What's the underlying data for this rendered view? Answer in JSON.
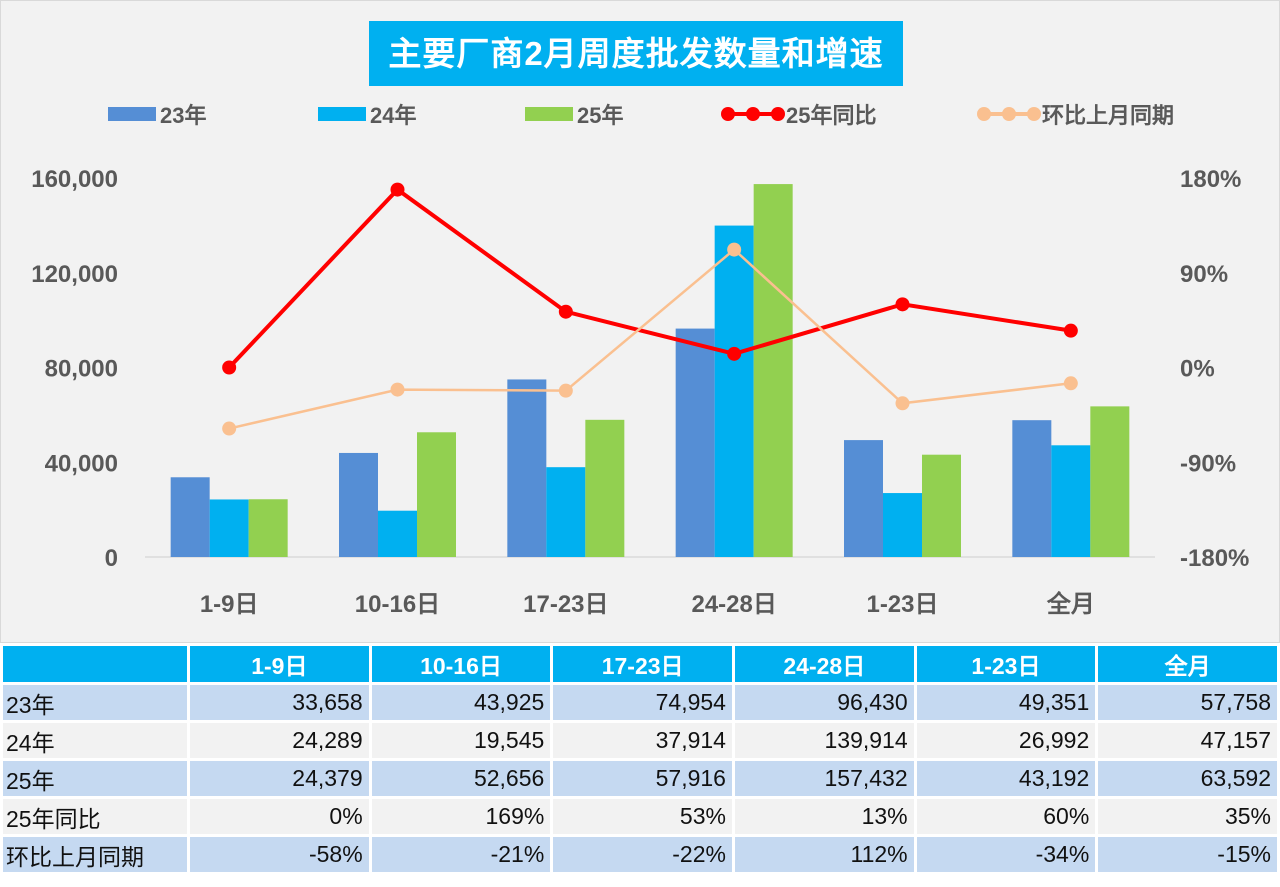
{
  "chart_data": {
    "type": "bar+line",
    "title": "主要厂商2月周度批发数量和增速",
    "categories": [
      "1-9日",
      "10-16日",
      "17-23日",
      "24-28日",
      "1-23日",
      "全月"
    ],
    "series": [
      {
        "name": "23年",
        "type": "bar",
        "axis": "left",
        "color": "#558ed5",
        "values": [
          33658,
          43925,
          74954,
          96430,
          49351,
          57758
        ]
      },
      {
        "name": "24年",
        "type": "bar",
        "axis": "left",
        "color": "#00b0f0",
        "values": [
          24289,
          19545,
          37914,
          139914,
          26992,
          47157
        ]
      },
      {
        "name": "25年",
        "type": "bar",
        "axis": "left",
        "color": "#92d050",
        "values": [
          24379,
          52656,
          57916,
          157432,
          43192,
          63592
        ]
      },
      {
        "name": "25年同比",
        "type": "line",
        "axis": "right",
        "color": "#ff0000",
        "values": [
          0,
          169,
          53,
          13,
          60,
          35
        ]
      },
      {
        "name": "环比上月同期",
        "type": "line",
        "axis": "right",
        "color": "#fac090",
        "values": [
          -58,
          -21,
          -22,
          112,
          -34,
          -15
        ]
      }
    ],
    "left_axis": {
      "ylim": [
        0,
        160000
      ],
      "ticks": [
        "0",
        "40,000",
        "80,000",
        "120,000",
        "160,000"
      ]
    },
    "right_axis": {
      "ylim": [
        -180,
        180
      ],
      "ticks": [
        "-180%",
        "-90%",
        "0%",
        "90%",
        "180%"
      ]
    },
    "legend": "top",
    "grid": false
  },
  "table": {
    "header": [
      "",
      "1-9日",
      "10-16日",
      "17-23日",
      "24-28日",
      "1-23日",
      "全月"
    ],
    "rows": [
      [
        "23年",
        "33,658",
        "43,925",
        "74,954",
        "96,430",
        "49,351",
        "57,758"
      ],
      [
        "24年",
        "24,289",
        "19,545",
        "37,914",
        "139,914",
        "26,992",
        "47,157"
      ],
      [
        "25年",
        "24,379",
        "52,656",
        "57,916",
        "157,432",
        "43,192",
        "63,592"
      ],
      [
        "25年同比",
        "0%",
        "169%",
        "53%",
        "13%",
        "60%",
        "35%"
      ],
      [
        "环比上月同期",
        "-58%",
        "-21%",
        "-22%",
        "112%",
        "-34%",
        "-15%"
      ]
    ]
  }
}
